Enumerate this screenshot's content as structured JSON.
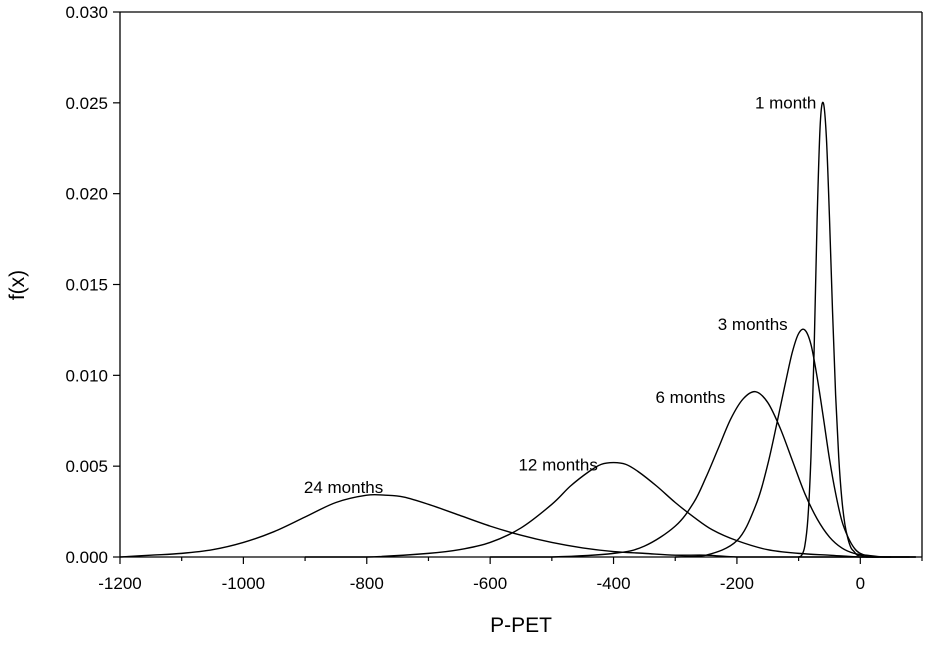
{
  "chart_data": {
    "type": "line",
    "xlabel": "P-PET",
    "ylabel": "f(x)",
    "xlim": [
      -1200,
      100
    ],
    "ylim": [
      0,
      0.03
    ],
    "xticks": [
      "-1200",
      "-1000",
      "-800",
      "-600",
      "-400",
      "-200",
      "0"
    ],
    "xtick_values": [
      -1200,
      -1000,
      -800,
      -600,
      -400,
      -200,
      0
    ],
    "yticks": [
      "0.000",
      "0.005",
      "0.010",
      "0.015",
      "0.020",
      "0.025",
      "0.030"
    ],
    "ytick_values": [
      0,
      0.005,
      0.01,
      0.015,
      0.02,
      0.025,
      0.03
    ],
    "grid": false,
    "legend": "none",
    "series": [
      {
        "name": "1 month",
        "x": [
          -100,
          -95,
          -90,
          -85,
          -80,
          -75,
          -70,
          -65,
          -60,
          -55,
          -50,
          -45,
          -40,
          -35,
          -30,
          -25,
          -20,
          -15,
          -10,
          -5,
          0,
          10,
          20,
          30
        ],
        "y": [
          0.0,
          0.0001,
          0.0006,
          0.0021,
          0.0055,
          0.0112,
          0.0186,
          0.0238,
          0.025,
          0.0231,
          0.0187,
          0.0135,
          0.0089,
          0.0055,
          0.0032,
          0.0018,
          0.001,
          0.0005,
          0.0003,
          0.0001,
          0.0001,
          0.0,
          0.0,
          0.0
        ]
      },
      {
        "name": "3 months",
        "x": [
          -300,
          -250,
          -200,
          -170,
          -150,
          -130,
          -120,
          -110,
          -100,
          -90,
          -80,
          -70,
          -60,
          -50,
          -40,
          -30,
          -20,
          -10,
          0,
          20,
          50
        ],
        "y": [
          0.0,
          0.0001,
          0.0009,
          0.0028,
          0.0051,
          0.0082,
          0.0098,
          0.0113,
          0.0123,
          0.0125,
          0.0117,
          0.0099,
          0.0077,
          0.0054,
          0.0035,
          0.002,
          0.0011,
          0.0005,
          0.0002,
          0.0,
          0.0
        ]
      },
      {
        "name": "6 months",
        "x": [
          -600,
          -500,
          -400,
          -350,
          -300,
          -270,
          -250,
          -230,
          -210,
          -190,
          -170,
          -150,
          -130,
          -110,
          -90,
          -70,
          -50,
          -30,
          -10,
          10,
          40,
          80
        ],
        "y": [
          0.0,
          0.0,
          0.0002,
          0.0006,
          0.0017,
          0.003,
          0.0044,
          0.006,
          0.0076,
          0.0087,
          0.0091,
          0.0085,
          0.0071,
          0.0053,
          0.0035,
          0.0021,
          0.0011,
          0.0005,
          0.0002,
          0.0001,
          0.0,
          0.0
        ]
      },
      {
        "name": "12 months",
        "x": [
          -900,
          -800,
          -700,
          -650,
          -600,
          -550,
          -500,
          -470,
          -440,
          -420,
          -400,
          -380,
          -360,
          -330,
          -300,
          -270,
          -240,
          -200,
          -150,
          -100,
          -50,
          0,
          50,
          90
        ],
        "y": [
          0.0,
          0.0,
          0.0002,
          0.0004,
          0.0008,
          0.0016,
          0.0029,
          0.0039,
          0.0047,
          0.0051,
          0.0052,
          0.0051,
          0.0047,
          0.0039,
          0.003,
          0.0022,
          0.0015,
          0.0009,
          0.0004,
          0.0002,
          0.0001,
          0.0,
          0.0,
          0.0
        ]
      },
      {
        "name": "24 months",
        "x": [
          -1200,
          -1150,
          -1100,
          -1050,
          -1000,
          -950,
          -900,
          -850,
          -800,
          -770,
          -740,
          -700,
          -650,
          -600,
          -550,
          -500,
          -450,
          -400,
          -350,
          -300,
          -250,
          -200,
          -150,
          -100,
          -50,
          0,
          90
        ],
        "y": [
          0.0,
          0.0001,
          0.0002,
          0.0004,
          0.0008,
          0.0014,
          0.0022,
          0.003,
          0.0034,
          0.0034,
          0.0033,
          0.0029,
          0.0023,
          0.0017,
          0.0012,
          0.0008,
          0.0005,
          0.0003,
          0.0002,
          0.0001,
          0.0001,
          0.0,
          0.0,
          0.0,
          0.0,
          0.0,
          0.0
        ]
      }
    ],
    "annotations": [
      {
        "text": "1 month",
        "x": -55,
        "y": 0.0247
      },
      {
        "text": "3 months",
        "x": -95,
        "y": 0.0125
      },
      {
        "text": "6 months",
        "x": -170,
        "y": 0.0087
      },
      {
        "text": "12 months",
        "x": -393,
        "y": 0.0051
      },
      {
        "text": "24 months",
        "x": -770,
        "y": 0.0034
      }
    ]
  }
}
